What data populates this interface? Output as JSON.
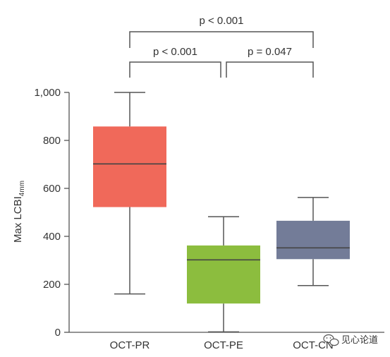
{
  "chart_data": {
    "type": "box",
    "ylabel_main": "Max LCBI",
    "ylabel_sub": "4mm",
    "ylim": [
      0,
      1000
    ],
    "yticks": [
      0,
      200,
      400,
      600,
      800,
      1000
    ],
    "ytick_labels": [
      "0",
      "200",
      "400",
      "600",
      "800",
      "1,000"
    ],
    "grid": false,
    "categories": [
      "OCT-PR",
      "OCT-PE",
      "OCT-CN"
    ],
    "boxes": [
      {
        "category": "OCT-PR",
        "min": 160,
        "q1": 522,
        "median": 702,
        "q3": 858,
        "max": 1000,
        "color": "#f0695a"
      },
      {
        "category": "OCT-PE",
        "min": 2,
        "q1": 120,
        "median": 302,
        "q3": 362,
        "max": 482,
        "color": "#8cbd3e"
      },
      {
        "category": "OCT-CN",
        "min": 195,
        "q1": 305,
        "median": 352,
        "q3": 465,
        "max": 562,
        "color": "#737c98"
      }
    ],
    "comparisons": [
      {
        "from": "OCT-PR",
        "to": "OCT-CN",
        "label": "p < 0.001"
      },
      {
        "from": "OCT-PR",
        "to": "OCT-PE",
        "label": "p < 0.001"
      },
      {
        "from": "OCT-PE",
        "to": "OCT-CN",
        "label": "p = 0.047"
      }
    ]
  },
  "watermark": {
    "text": "见心论道",
    "icon": "wechat-icon"
  },
  "colors": {
    "axis": "#555555",
    "line": "#555555",
    "median": "#444444"
  }
}
